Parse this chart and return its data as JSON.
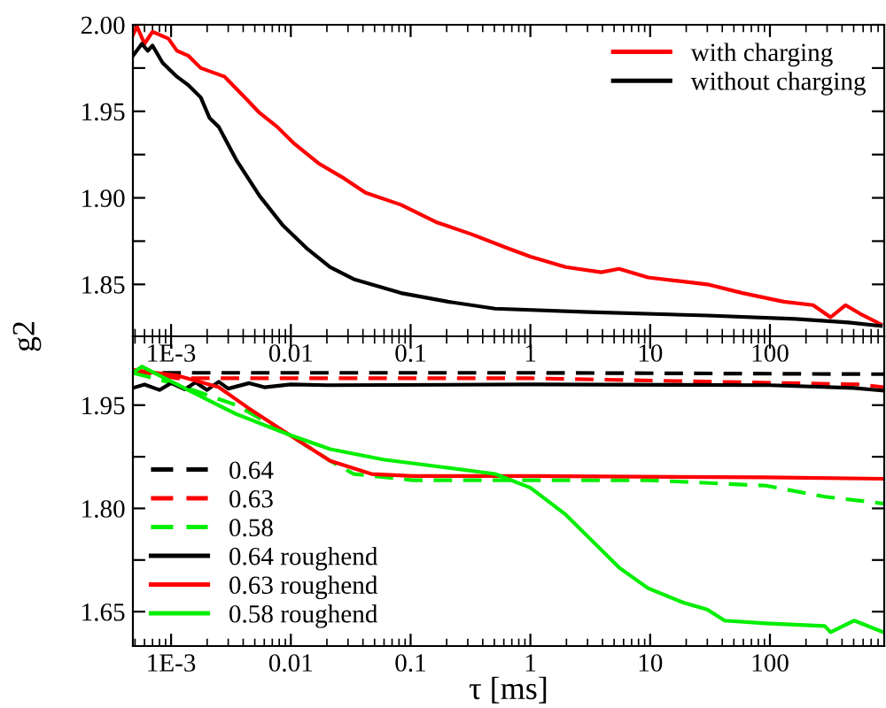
{
  "chart_data": [
    {
      "type": "line",
      "ylabel": "g2",
      "log": "x",
      "legend": "top right",
      "grid": false,
      "tick_labels": "xy",
      "xlim": [
        0.00048,
        900
      ],
      "xticks": [
        {
          "value": 0.001,
          "label": "1E-3"
        },
        0.01,
        0.1,
        1,
        10,
        100
      ],
      "ylim": [
        1.82,
        2.0
      ],
      "yticks": [
        {
          "value": 1.85,
          "label": "1.85"
        },
        {
          "value": 1.875,
          "label": null
        },
        {
          "value": 1.9,
          "label": "1.90"
        },
        {
          "value": 1.925,
          "label": null
        },
        {
          "value": 1.95,
          "label": "1.95"
        },
        {
          "value": 1.975,
          "label": null
        },
        {
          "value": 2.0,
          "label": "2.00"
        }
      ],
      "series": [
        {
          "name": "with charging",
          "color": "#ff0000",
          "line_style": "solid",
          "x": [
            0.00048,
            0.00052,
            0.0006,
            0.0007,
            0.00095,
            0.00112,
            0.0014,
            0.00177,
            0.0028,
            0.0044,
            0.0055,
            0.0077,
            0.0108,
            0.017,
            0.0267,
            0.042,
            0.083,
            0.163,
            0.322,
            0.64,
            1,
            1.97,
            3.9,
            5.5,
            9.6,
            17,
            30,
            59,
            130,
            229,
            321,
            427,
            567,
            842
          ],
          "values": [
            1.994,
            1.999,
            1.989,
            1.996,
            1.992,
            1.985,
            1.982,
            1.975,
            1.97,
            1.956,
            1.949,
            1.941,
            1.931,
            1.92,
            1.912,
            1.903,
            1.896,
            1.886,
            1.879,
            1.871,
            1.866,
            1.86,
            1.857,
            1.859,
            1.854,
            1.852,
            1.85,
            1.845,
            1.84,
            1.838,
            1.831,
            1.838,
            1.833,
            1.827
          ]
        },
        {
          "name": "without charging",
          "color": "#000000",
          "line_style": "solid",
          "x": [
            0.00048,
            0.00057,
            0.00064,
            0.0007,
            0.00085,
            0.00112,
            0.0014,
            0.00177,
            0.0021,
            0.0025,
            0.0035,
            0.0055,
            0.0086,
            0.0135,
            0.0213,
            0.0335,
            0.083,
            0.205,
            0.507,
            3.1,
            30,
            163,
            452,
            842
          ],
          "values": [
            1.982,
            1.989,
            1.985,
            1.988,
            1.978,
            1.97,
            1.965,
            1.958,
            1.946,
            1.941,
            1.922,
            1.901,
            1.884,
            1.871,
            1.86,
            1.853,
            1.845,
            1.84,
            1.836,
            1.834,
            1.832,
            1.83,
            1.828,
            1.826
          ]
        }
      ]
    },
    {
      "type": "line",
      "xlabel": "τ [ms]",
      "log": "x",
      "legend": "bottom left",
      "grid": false,
      "xlim": [
        0.00048,
        900
      ],
      "xticks": [
        {
          "value": 0.001,
          "label": "1E-3"
        },
        0.01,
        0.1,
        1,
        10,
        100
      ],
      "ylim": [
        1.6,
        2.05
      ],
      "yticks": [
        {
          "value": 1.65,
          "label": "1.65"
        },
        {
          "value": 1.725,
          "label": null
        },
        {
          "value": 1.8,
          "label": "1.80"
        },
        {
          "value": 1.875,
          "label": null
        },
        {
          "value": 1.95,
          "label": "1.95"
        }
      ],
      "series": [
        {
          "name": "0.64",
          "color": "#000000",
          "line_style": "dashed",
          "x": [
            0.00048,
            1,
            891
          ],
          "values": [
            1.997,
            1.997,
            1.995
          ]
        },
        {
          "name": "0.63",
          "color": "#ff0000",
          "line_style": "dashed",
          "x": [
            0.00048,
            0.00112,
            1,
            567,
            891
          ],
          "values": [
            2.001,
            1.989,
            1.989,
            1.98,
            1.976
          ]
        },
        {
          "name": "0.58",
          "color": "#00ee00",
          "line_style": "dashed",
          "x": [
            0.00048,
            0.00112,
            0.0035,
            0.0097,
            0.0213,
            0.0335,
            0.104,
            1,
            9.6,
            92.6,
            287,
            891
          ],
          "values": [
            1.997,
            1.98,
            1.95,
            1.907,
            1.869,
            1.85,
            1.841,
            1.841,
            1.841,
            1.833,
            1.817,
            1.807
          ]
        },
        {
          "name": "0.64 roughend",
          "color": "#000000",
          "line_style": "solid",
          "x": [
            0.00048,
            0.0006,
            0.0008,
            0.001,
            0.0013,
            0.0016,
            0.002,
            0.0025,
            0.003,
            0.0045,
            0.006,
            0.01,
            0.02,
            1,
            100,
            500,
            891
          ],
          "values": [
            1.975,
            1.98,
            1.972,
            1.982,
            1.973,
            1.983,
            1.972,
            1.984,
            1.974,
            1.982,
            1.976,
            1.98,
            1.979,
            1.98,
            1.979,
            1.975,
            1.971
          ]
        },
        {
          "name": "0.63 roughend",
          "color": "#ff0000",
          "line_style": "solid",
          "x": [
            0.00048,
            0.00112,
            0.0025,
            0.0044,
            0.0097,
            0.0213,
            0.047,
            0.104,
            1,
            92.6,
            891
          ],
          "values": [
            2.001,
            1.993,
            1.976,
            1.946,
            1.907,
            1.869,
            1.85,
            1.847,
            1.847,
            1.845,
            1.843
          ]
        },
        {
          "name": "0.58 roughend",
          "color": "#00ee00",
          "line_style": "solid",
          "x": [
            0.00048,
            0.00057,
            0.00112,
            0.0035,
            0.0097,
            0.0213,
            0.059,
            0.183,
            0.507,
            1,
            1.97,
            3.1,
            5.5,
            9.6,
            19,
            30,
            41.9,
            92.6,
            287,
            321,
            506,
            891
          ],
          "values": [
            1.997,
            2.006,
            1.98,
            1.937,
            1.907,
            1.886,
            1.871,
            1.86,
            1.85,
            1.83,
            1.791,
            1.757,
            1.714,
            1.684,
            1.663,
            1.653,
            1.637,
            1.633,
            1.629,
            1.62,
            1.637,
            1.62
          ]
        }
      ]
    }
  ]
}
